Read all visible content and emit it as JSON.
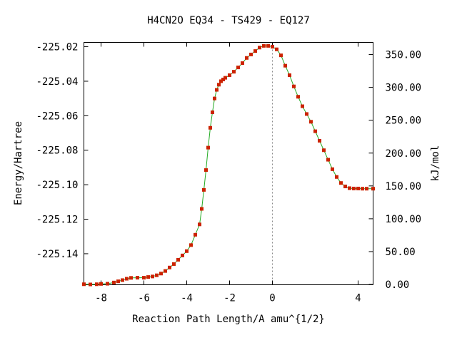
{
  "chart_data": {
    "type": "line",
    "title": "H4CN2O   EQ34 - TS429 - EQ127",
    "xlabel": "Reaction Path Length/A amu^{1/2}",
    "ylabel": "Energy/Hartree",
    "y2label": "kJ/mol",
    "xlim": [
      -8.8,
      4.7
    ],
    "ylim": [
      -225.158,
      -225.0175
    ],
    "y2lim": [
      -0.5,
      368.5
    ],
    "x_ticks": [
      -8,
      -6,
      -4,
      -2,
      0,
      4
    ],
    "x_tick_labels": [
      "-8",
      "-6",
      "-4",
      "-2",
      "0",
      "4"
    ],
    "y_ticks": [
      -225.02,
      -225.04,
      -225.06,
      -225.08,
      -225.1,
      -225.12,
      -225.14
    ],
    "y_tick_labels": [
      "-225.02",
      "-225.04",
      "-225.06",
      "-225.08",
      "-225.10",
      "-225.12",
      "-225.14"
    ],
    "y2_ticks": [
      0,
      50,
      100,
      150,
      200,
      250,
      300,
      350
    ],
    "y2_tick_labels": [
      "0.00",
      "50.00",
      "100.00",
      "150.00",
      "200.00",
      "250.00",
      "300.00",
      "350.00"
    ],
    "ts_marker_x": 0,
    "line_color": "#22aa22",
    "marker_color": "#cc2200",
    "ts_line_color": "#888888",
    "series": [
      {
        "x": [
          -8.8,
          -8.5,
          -8.2,
          -8.0,
          -7.7,
          -7.4,
          -7.2,
          -7.0,
          -6.8,
          -6.6,
          -6.3,
          -6.0,
          -5.8,
          -5.6,
          -5.4,
          -5.2,
          -5.0,
          -4.8,
          -4.6,
          -4.4,
          -4.2,
          -4.0,
          -3.8,
          -3.6,
          -3.4,
          -3.3,
          -3.2,
          -3.1,
          -3.0,
          -2.9,
          -2.8,
          -2.7,
          -2.6,
          -2.5,
          -2.4,
          -2.3,
          -2.2,
          -2.0,
          -1.8,
          -1.6,
          -1.4,
          -1.2,
          -1.0,
          -0.8,
          -0.6,
          -0.4,
          -0.2,
          0.0,
          0.2,
          0.4,
          0.6,
          0.8,
          1.0,
          1.2,
          1.4,
          1.6,
          1.8,
          2.0,
          2.2,
          2.4,
          2.6,
          2.8,
          3.0,
          3.2,
          3.4,
          3.6,
          3.8,
          4.0,
          4.2,
          4.4,
          4.7
        ],
        "y": [
          -225.1577,
          -225.1578,
          -225.1577,
          -225.1575,
          -225.1574,
          -225.1567,
          -225.156,
          -225.1553,
          -225.1545,
          -225.154,
          -225.1539,
          -225.1539,
          -225.1535,
          -225.1532,
          -225.1525,
          -225.1515,
          -225.15,
          -225.148,
          -225.146,
          -225.1435,
          -225.141,
          -225.1385,
          -225.135,
          -225.129,
          -225.123,
          -225.114,
          -225.103,
          -225.0915,
          -225.0785,
          -225.067,
          -225.058,
          -225.05,
          -225.045,
          -225.042,
          -225.04,
          -225.039,
          -225.038,
          -225.0365,
          -225.0345,
          -225.032,
          -225.0295,
          -225.0265,
          -225.0245,
          -225.0225,
          -225.0205,
          -225.0195,
          -225.0195,
          -225.02,
          -225.0215,
          -225.025,
          -225.031,
          -225.0365,
          -225.043,
          -225.049,
          -225.0545,
          -225.059,
          -225.0635,
          -225.069,
          -225.0745,
          -225.08,
          -225.0855,
          -225.091,
          -225.0955,
          -225.099,
          -225.101,
          -225.102,
          -225.1022,
          -225.1022,
          -225.1023,
          -225.1023,
          -225.1023
        ]
      }
    ]
  }
}
